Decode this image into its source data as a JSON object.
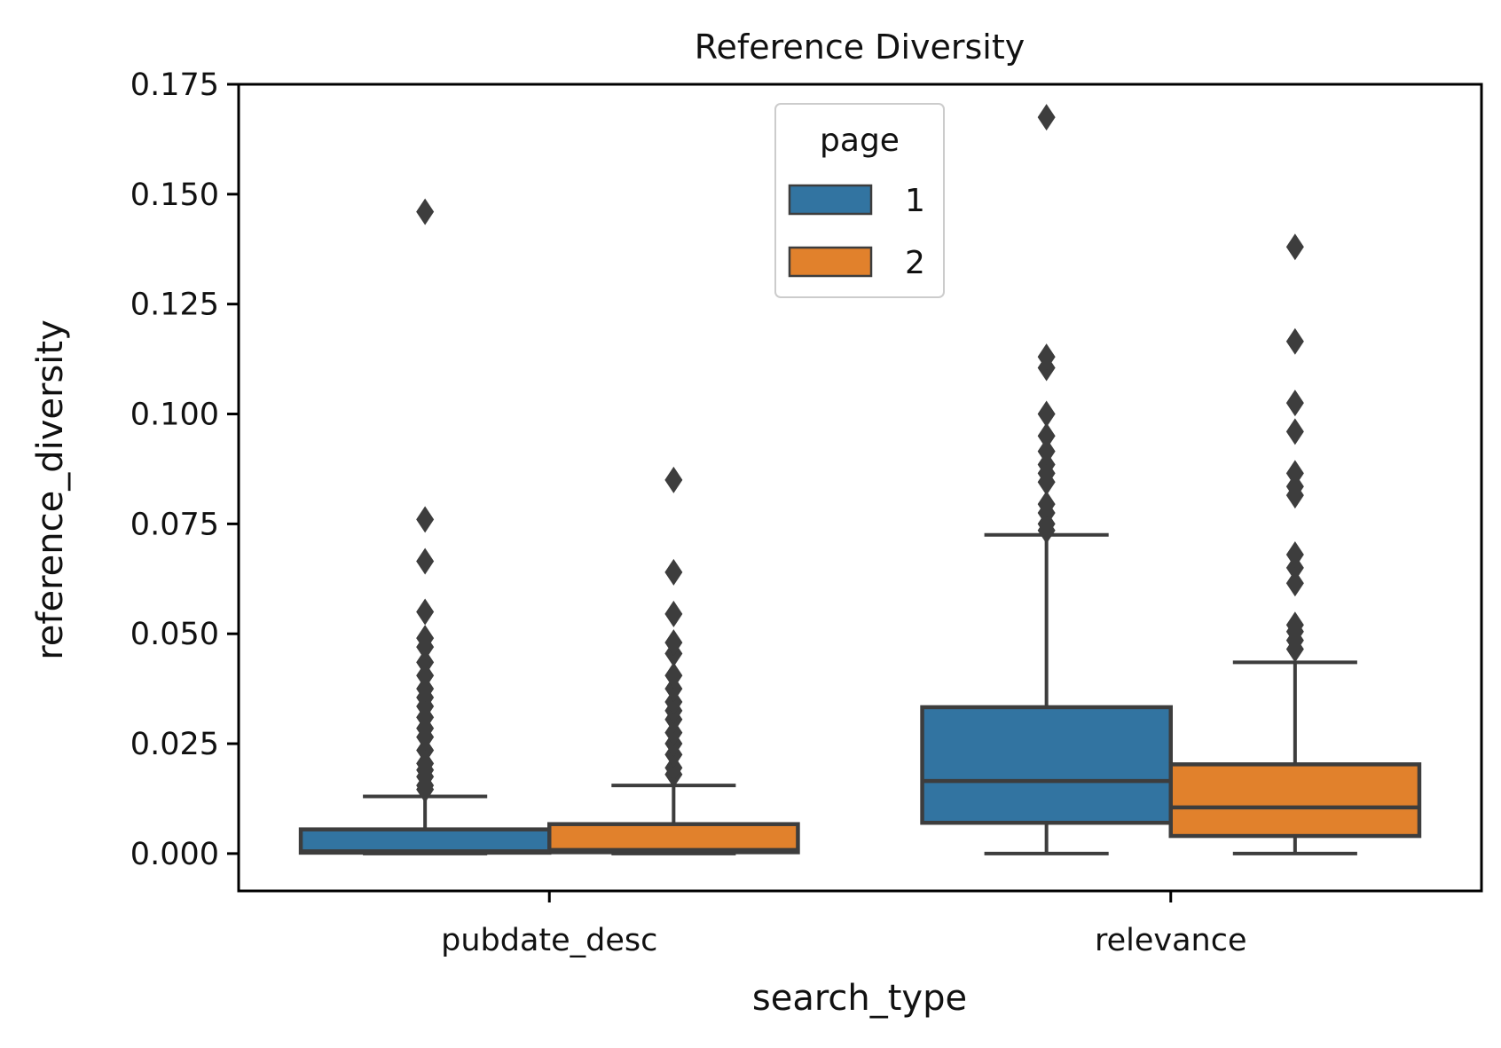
{
  "chart_data": {
    "type": "box",
    "title": "Reference Diversity",
    "xlabel": "search_type",
    "ylabel": "reference_diversity",
    "categories": [
      "pubdate_desc",
      "relevance"
    ],
    "ylim": [
      -0.0085,
      0.175
    ],
    "yticks": [
      "0.000",
      "0.025",
      "0.050",
      "0.075",
      "0.100",
      "0.125",
      "0.150",
      "0.175"
    ],
    "grid": false,
    "legend": {
      "title": "page",
      "placement": "upper center",
      "entries": [
        {
          "label": "1",
          "color": "#3274a1"
        },
        {
          "label": "2",
          "color": "#e1812c"
        }
      ]
    },
    "series": [
      {
        "name": "1",
        "color": "#3274a1",
        "boxes": [
          {
            "category": "pubdate_desc",
            "whisker_low": 0.0,
            "q1": 0.0002,
            "median": 0.0005,
            "q3": 0.0055,
            "whisker_high": 0.013,
            "outliers": [
              0.0146,
              0.0155,
              0.0175,
              0.019,
              0.0205,
              0.0235,
              0.0265,
              0.0285,
              0.031,
              0.0335,
              0.0355,
              0.0375,
              0.0405,
              0.0435,
              0.047,
              0.049,
              0.055,
              0.0665,
              0.076,
              0.146
            ]
          },
          {
            "category": "relevance",
            "whisker_low": 0.0,
            "q1": 0.007,
            "median": 0.0165,
            "q3": 0.0333,
            "whisker_high": 0.0725,
            "outliers": [
              0.0735,
              0.075,
              0.0775,
              0.0795,
              0.0845,
              0.0865,
              0.0885,
              0.0915,
              0.095,
              0.1,
              0.1105,
              0.113,
              0.1675
            ]
          }
        ]
      },
      {
        "name": "2",
        "color": "#e1812c",
        "boxes": [
          {
            "category": "pubdate_desc",
            "whisker_low": 0.0,
            "q1": 0.0003,
            "median": 0.0008,
            "q3": 0.0067,
            "whisker_high": 0.0155,
            "outliers": [
              0.018,
              0.0195,
              0.0225,
              0.025,
              0.0275,
              0.0305,
              0.0325,
              0.0345,
              0.0375,
              0.0405,
              0.0455,
              0.048,
              0.0545,
              0.064,
              0.085
            ]
          },
          {
            "category": "relevance",
            "whisker_low": 0.0,
            "q1": 0.004,
            "median": 0.0105,
            "q3": 0.0203,
            "whisker_high": 0.0435,
            "outliers": [
              0.0465,
              0.0485,
              0.0505,
              0.052,
              0.0615,
              0.065,
              0.068,
              0.0815,
              0.0835,
              0.0865,
              0.096,
              0.1025,
              0.1165,
              0.138
            ]
          }
        ]
      }
    ]
  }
}
